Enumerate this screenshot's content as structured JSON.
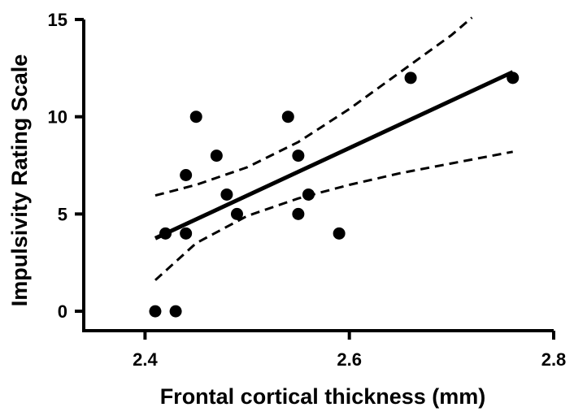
{
  "chart_data": {
    "type": "scatter",
    "xlabel": "Frontal cortical thickness (mm)",
    "ylabel": "Impulsivity Rating Scale",
    "xlim": [
      2.34,
      2.8
    ],
    "ylim": [
      -1,
      15
    ],
    "xticks": [
      2.4,
      2.6,
      2.8
    ],
    "yticks": [
      0,
      5,
      10,
      15
    ],
    "xtick_labels": [
      "2.4",
      "2.6",
      "2.8"
    ],
    "ytick_labels": [
      "0",
      "5",
      "10",
      "15"
    ],
    "grid": false,
    "legend": "none",
    "points": [
      {
        "x": 2.41,
        "y": 0
      },
      {
        "x": 2.42,
        "y": 4
      },
      {
        "x": 2.43,
        "y": 0
      },
      {
        "x": 2.44,
        "y": 7
      },
      {
        "x": 2.44,
        "y": 4
      },
      {
        "x": 2.45,
        "y": 10
      },
      {
        "x": 2.47,
        "y": 8
      },
      {
        "x": 2.48,
        "y": 6
      },
      {
        "x": 2.49,
        "y": 5
      },
      {
        "x": 2.54,
        "y": 10
      },
      {
        "x": 2.55,
        "y": 8
      },
      {
        "x": 2.55,
        "y": 5
      },
      {
        "x": 2.56,
        "y": 6
      },
      {
        "x": 2.59,
        "y": 4
      },
      {
        "x": 2.66,
        "y": 12
      },
      {
        "x": 2.76,
        "y": 12
      }
    ],
    "regression_line": {
      "x": [
        2.41,
        2.76
      ],
      "y": [
        3.75,
        12.3
      ]
    },
    "confidence_band_upper": {
      "x": [
        2.41,
        2.45,
        2.5,
        2.55,
        2.6,
        2.65,
        2.7,
        2.72
      ],
      "y": [
        5.95,
        6.5,
        7.4,
        8.7,
        10.4,
        12.3,
        14.2,
        15.1
      ]
    },
    "confidence_band_lower": {
      "x": [
        2.41,
        2.45,
        2.5,
        2.55,
        2.6,
        2.65,
        2.7,
        2.76
      ],
      "y": [
        1.6,
        3.5,
        4.9,
        5.8,
        6.5,
        7.1,
        7.6,
        8.2
      ]
    },
    "colors": {
      "points": "#000000",
      "line": "#000000",
      "axes": "#000000"
    }
  }
}
